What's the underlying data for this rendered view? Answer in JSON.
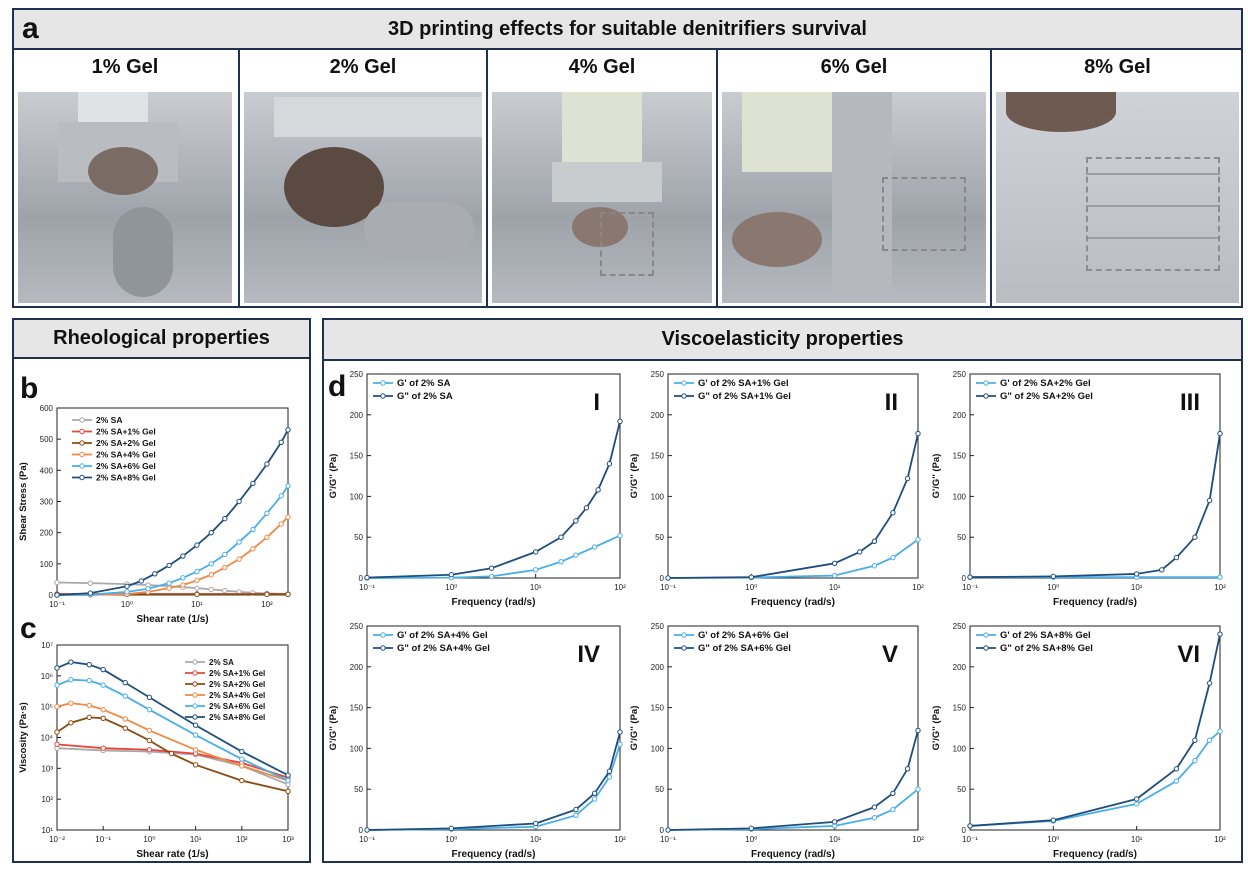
{
  "panel_a": {
    "letter": "a",
    "title": "3D printing effects for suitable denitrifiers survival",
    "photos": [
      {
        "label": "1% Gel"
      },
      {
        "label": "2% Gel"
      },
      {
        "label": "4% Gel"
      },
      {
        "label": "6% Gel"
      },
      {
        "label": "8% Gel"
      }
    ]
  },
  "panel_bc": {
    "title": "Rheological properties",
    "letter_b": "b",
    "letter_c": "c"
  },
  "panel_d": {
    "title": "Viscoelasticity properties",
    "letter": "d"
  },
  "colors": {
    "border": "#1f3050",
    "SA": "#a9a9a9",
    "g1": "#e8453c",
    "g2": "#8b4a0f",
    "g4": "#ee8a45",
    "g6": "#4aaee8",
    "g8": "#1f4e7d",
    "gp": "#4aaee8",
    "gpp": "#1f4e7d"
  },
  "chart_data": [
    {
      "id": "b",
      "type": "line",
      "xlabel": "Shear rate (1/s)",
      "ylabel": "Shear Stress (Pa)",
      "xscale": "log",
      "xlim": [
        0.1,
        200
      ],
      "ylim": [
        0,
        600
      ],
      "xticks": [
        {
          "v": 0.1,
          "l": "10⁻¹"
        },
        {
          "v": 1,
          "l": "10⁰"
        },
        {
          "v": 10,
          "l": "10¹"
        },
        {
          "v": 100,
          "l": "10²"
        }
      ],
      "yticks": [
        0,
        100,
        200,
        300,
        400,
        500,
        600
      ],
      "legend": "top-left",
      "series": [
        {
          "name": "2% SA",
          "color": "#a9a9a9",
          "x": [
            0.1,
            0.3,
            1,
            2,
            4,
            6.3,
            10,
            16,
            25,
            40,
            63,
            100,
            200
          ],
          "y": [
            40,
            38,
            35,
            32,
            28,
            25,
            22,
            18,
            14,
            10,
            7,
            5,
            3
          ]
        },
        {
          "name": "2% SA+1% Gel",
          "color": "#e8453c",
          "x": [
            0.1,
            1,
            10,
            100,
            200
          ],
          "y": [
            3,
            3,
            3,
            3,
            3
          ]
        },
        {
          "name": "2% SA+2% Gel",
          "color": "#8b4a0f",
          "x": [
            0.1,
            1,
            10,
            100,
            200
          ],
          "y": [
            2,
            2,
            2,
            2,
            2
          ]
        },
        {
          "name": "2% SA+4% Gel",
          "color": "#ee8a45",
          "x": [
            0.1,
            0.3,
            1,
            2,
            4,
            6.3,
            10,
            16,
            25,
            40,
            63,
            100,
            160,
            200
          ],
          "y": [
            0,
            0,
            3,
            10,
            22,
            32,
            47,
            65,
            88,
            115,
            148,
            185,
            228,
            250
          ]
        },
        {
          "name": "2% SA+6% Gel",
          "color": "#4aaee8",
          "x": [
            0.1,
            0.3,
            1,
            2,
            4,
            6.3,
            10,
            16,
            25,
            40,
            63,
            100,
            160,
            200
          ],
          "y": [
            0,
            1,
            10,
            20,
            38,
            55,
            75,
            100,
            130,
            170,
            210,
            262,
            318,
            350
          ]
        },
        {
          "name": "2% SA+8% Gel",
          "color": "#1f4e7d",
          "x": [
            0.1,
            0.3,
            1,
            1.6,
            2.5,
            4,
            6.3,
            10,
            16,
            25,
            40,
            63,
            100,
            160,
            200
          ],
          "y": [
            0,
            6,
            28,
            45,
            68,
            95,
            125,
            160,
            200,
            245,
            300,
            358,
            420,
            490,
            530
          ]
        }
      ]
    },
    {
      "id": "c",
      "type": "line",
      "xlabel": "Shear rate (1/s)",
      "ylabel": "Viscosity (Pa·s)",
      "xscale": "log",
      "yscale": "log",
      "xlim": [
        0.01,
        1000
      ],
      "ylim": [
        10,
        10000000
      ],
      "xticks": [
        {
          "v": 0.01,
          "l": "10⁻²"
        },
        {
          "v": 0.1,
          "l": "10⁻¹"
        },
        {
          "v": 1,
          "l": "10⁰"
        },
        {
          "v": 10,
          "l": "10¹"
        },
        {
          "v": 100,
          "l": "10²"
        },
        {
          "v": 1000,
          "l": "10³"
        }
      ],
      "yticks": [
        {
          "v": 10,
          "l": "10¹"
        },
        {
          "v": 100,
          "l": "10²"
        },
        {
          "v": 1000,
          "l": "10³"
        },
        {
          "v": 10000,
          "l": "10⁴"
        },
        {
          "v": 100000,
          "l": "10⁵"
        },
        {
          "v": 1000000,
          "l": "10⁶"
        },
        {
          "v": 10000000,
          "l": "10⁷"
        }
      ],
      "legend": "top-right",
      "series": [
        {
          "name": "2% SA",
          "color": "#a9a9a9",
          "x": [
            0.01,
            0.1,
            1,
            10,
            100,
            1000
          ],
          "y": [
            4500,
            3800,
            3500,
            2800,
            1200,
            300
          ]
        },
        {
          "name": "2% SA+1% Gel",
          "color": "#e8453c",
          "x": [
            0.01,
            0.1,
            1,
            10,
            100,
            1000
          ],
          "y": [
            6000,
            4500,
            4000,
            3000,
            1500,
            500
          ]
        },
        {
          "name": "2% SA+2% Gel",
          "color": "#8b4a0f",
          "x": [
            0.01,
            0.02,
            0.05,
            0.1,
            0.3,
            1,
            3,
            10,
            100,
            1000
          ],
          "y": [
            15000,
            30000,
            45000,
            42000,
            20000,
            8000,
            3000,
            1300,
            400,
            180
          ]
        },
        {
          "name": "2% SA+4% Gel",
          "color": "#ee8a45",
          "x": [
            0.01,
            0.02,
            0.05,
            0.1,
            0.3,
            1,
            10,
            100,
            1000
          ],
          "y": [
            100000,
            130000,
            110000,
            80000,
            40000,
            17000,
            4000,
            1200,
            400
          ]
        },
        {
          "name": "2% SA+6% Gel",
          "color": "#4aaee8",
          "x": [
            0.01,
            0.02,
            0.05,
            0.1,
            0.3,
            1,
            10,
            100,
            1000
          ],
          "y": [
            500000,
            750000,
            700000,
            500000,
            220000,
            80000,
            12000,
            2000,
            400
          ]
        },
        {
          "name": "2% SA+8% Gel",
          "color": "#1f4e7d",
          "x": [
            0.01,
            0.02,
            0.05,
            0.1,
            0.3,
            1,
            10,
            100,
            1000
          ],
          "y": [
            1800000,
            2800000,
            2300000,
            1600000,
            600000,
            200000,
            25000,
            3500,
            600
          ]
        }
      ]
    },
    {
      "id": "dI",
      "numeral": "I",
      "type": "line",
      "xlabel": "Frequency (rad/s)",
      "ylabel": "G'/G'' (Pa)",
      "xscale": "log",
      "xlim": [
        0.1,
        100
      ],
      "ylim": [
        0,
        250
      ],
      "series": [
        {
          "name": "G'  of 2% SA",
          "color": "#4aaee8",
          "x": [
            0.1,
            1,
            3,
            10,
            20,
            30,
            50,
            100
          ],
          "y": [
            0,
            0.5,
            2,
            10,
            20,
            28,
            38,
            52
          ]
        },
        {
          "name": "G\" of 2% SA",
          "color": "#1f4e7d",
          "x": [
            0.1,
            1,
            3,
            10,
            20,
            30,
            40,
            55,
            75,
            100
          ],
          "y": [
            0.5,
            4,
            12,
            32,
            50,
            70,
            86,
            108,
            140,
            192
          ]
        }
      ]
    },
    {
      "id": "dII",
      "numeral": "II",
      "type": "line",
      "xlabel": "Frequency (rad/s)",
      "ylabel": "G'/G'' (Pa)",
      "xscale": "log",
      "xlim": [
        0.1,
        100
      ],
      "ylim": [
        0,
        250
      ],
      "series": [
        {
          "name": "G' of 2% SA+1% Gel",
          "color": "#4aaee8",
          "x": [
            0.1,
            1,
            10,
            30,
            50,
            100
          ],
          "y": [
            0,
            0.5,
            3,
            15,
            25,
            47
          ]
        },
        {
          "name": "G\" of 2% SA+1% Gel",
          "color": "#1f4e7d",
          "x": [
            0.1,
            1,
            10,
            20,
            30,
            50,
            75,
            100
          ],
          "y": [
            0,
            1,
            18,
            32,
            45,
            80,
            122,
            177
          ]
        }
      ]
    },
    {
      "id": "dIII",
      "numeral": "III",
      "type": "line",
      "xlabel": "Frequency (rad/s)",
      "ylabel": "G'/G'' (Pa)",
      "xscale": "log",
      "xlim": [
        0.1,
        100
      ],
      "ylim": [
        0,
        250
      ],
      "series": [
        {
          "name": "G' of 2% SA+2% Gel",
          "color": "#4aaee8",
          "x": [
            0.1,
            1,
            10,
            100
          ],
          "y": [
            1,
            1,
            1,
            1
          ]
        },
        {
          "name": "G\" of 2% SA+2% Gel",
          "color": "#1f4e7d",
          "x": [
            0.1,
            1,
            10,
            20,
            30,
            50,
            75,
            100
          ],
          "y": [
            1,
            2,
            5,
            10,
            25,
            50,
            95,
            177
          ]
        }
      ]
    },
    {
      "id": "dIV",
      "numeral": "IV",
      "type": "line",
      "xlabel": "Frequency (rad/s)",
      "ylabel": "G'/G'' (Pa)",
      "xscale": "log",
      "xlim": [
        0.1,
        100
      ],
      "ylim": [
        0,
        250
      ],
      "series": [
        {
          "name": "G' of 2% SA+4% Gel",
          "color": "#4aaee8",
          "x": [
            0.1,
            1,
            10,
            30,
            50,
            75,
            100
          ],
          "y": [
            0,
            1,
            4,
            18,
            38,
            65,
            105
          ]
        },
        {
          "name": "G\" of 2% SA+4% Gel",
          "color": "#1f4e7d",
          "x": [
            0.1,
            1,
            10,
            30,
            50,
            75,
            100
          ],
          "y": [
            0,
            2,
            8,
            25,
            45,
            72,
            120
          ]
        }
      ]
    },
    {
      "id": "dV",
      "numeral": "V",
      "type": "line",
      "xlabel": "Frequency (rad/s)",
      "ylabel": "G'/G'' (Pa)",
      "xscale": "log",
      "xlim": [
        0.1,
        100
      ],
      "ylim": [
        0,
        250
      ],
      "series": [
        {
          "name": "G' of 2% SA+6% Gel",
          "color": "#4aaee8",
          "x": [
            0.1,
            1,
            10,
            30,
            50,
            100
          ],
          "y": [
            0,
            1,
            5,
            15,
            25,
            50
          ]
        },
        {
          "name": "G\" of 2% SA+6% Gel",
          "color": "#1f4e7d",
          "x": [
            0.1,
            1,
            10,
            30,
            50,
            75,
            100
          ],
          "y": [
            0,
            2,
            10,
            28,
            45,
            75,
            122
          ]
        }
      ]
    },
    {
      "id": "dVI",
      "numeral": "VI",
      "type": "line",
      "xlabel": "Frequency (rad/s)",
      "ylabel": "G'/G'' (Pa)",
      "xscale": "log",
      "xlim": [
        0.1,
        100
      ],
      "ylim": [
        0,
        250
      ],
      "series": [
        {
          "name": "G' of 2% SA+8% Gel",
          "color": "#4aaee8",
          "x": [
            0.1,
            1,
            10,
            30,
            50,
            75,
            100
          ],
          "y": [
            5,
            11,
            32,
            60,
            85,
            110,
            121
          ]
        },
        {
          "name": "G\" of 2% SA+8% Gel",
          "color": "#1f4e7d",
          "x": [
            0.1,
            1,
            10,
            30,
            50,
            75,
            100
          ],
          "y": [
            5,
            12,
            38,
            75,
            110,
            180,
            240
          ]
        }
      ]
    }
  ]
}
